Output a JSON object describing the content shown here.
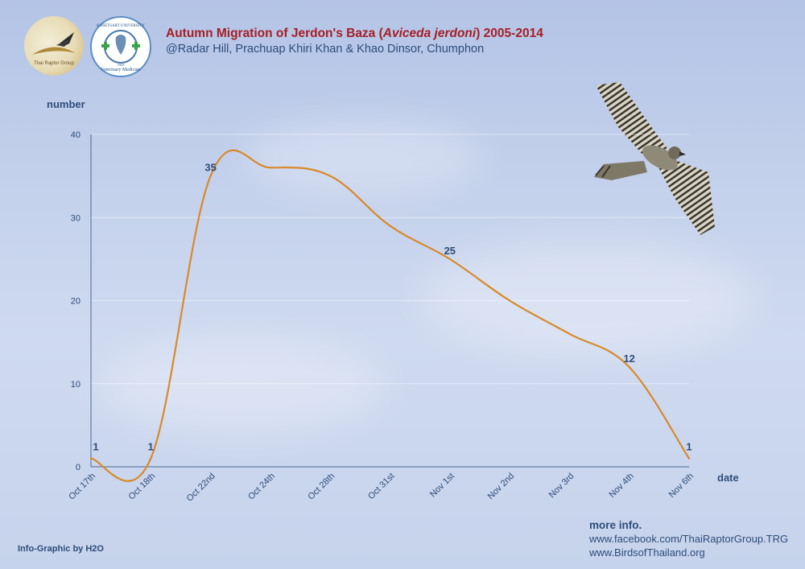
{
  "header": {
    "title_prefix": "Autumn Migration of Jerdon's Baza (",
    "title_species": "Aviceda jerdoni",
    "title_suffix": ") 2005-2014",
    "subtitle": "@Radar Hill, Prachuap Khiri Khan & Khao Dinsor, Chumphon"
  },
  "logos": {
    "left": {
      "text": "Thai Raptor Group"
    },
    "right": {
      "text_top": "KASETSART UNIVERSITY",
      "text_bottom": "Veterinary Medicine",
      "year": "1943"
    }
  },
  "chart_data": {
    "type": "line",
    "x_axis_title": "date",
    "y_axis_title": "number",
    "ylim": [
      0,
      40
    ],
    "yticks": [
      0,
      10,
      20,
      30,
      40
    ],
    "categories": [
      "Oct 17th",
      "Oct 18th",
      "Oct 22nd",
      "Oct 24th",
      "Oct 28th",
      "Oct 31st",
      "Nov 1st",
      "Nov 2nd",
      "Nov 3rd",
      "Nov 4th",
      "Nov 6th"
    ],
    "series": [
      {
        "values": [
          1,
          1,
          35,
          36,
          35,
          29,
          25,
          20,
          16,
          12,
          1
        ]
      }
    ],
    "data_labels": [
      {
        "category": "Oct 17th",
        "value": 1,
        "text": "1"
      },
      {
        "category": "Oct 18th",
        "value": 1,
        "text": "1"
      },
      {
        "category": "Oct 22nd",
        "value": 35,
        "text": "35"
      },
      {
        "category": "Nov 1st",
        "value": 25,
        "text": "25"
      },
      {
        "category": "Nov 4th",
        "value": 12,
        "text": "12"
      },
      {
        "category": "Nov 6th",
        "value": 1,
        "text": "1"
      }
    ],
    "line_color": "#d9892a",
    "grid": true
  },
  "footer": {
    "credit": "Info-Graphic by H2O",
    "more_info_title": "more info.",
    "links": [
      "www.facebook.com/ThaiRaptorGroup.TRG",
      "www.BirdsofThailand.org"
    ]
  }
}
